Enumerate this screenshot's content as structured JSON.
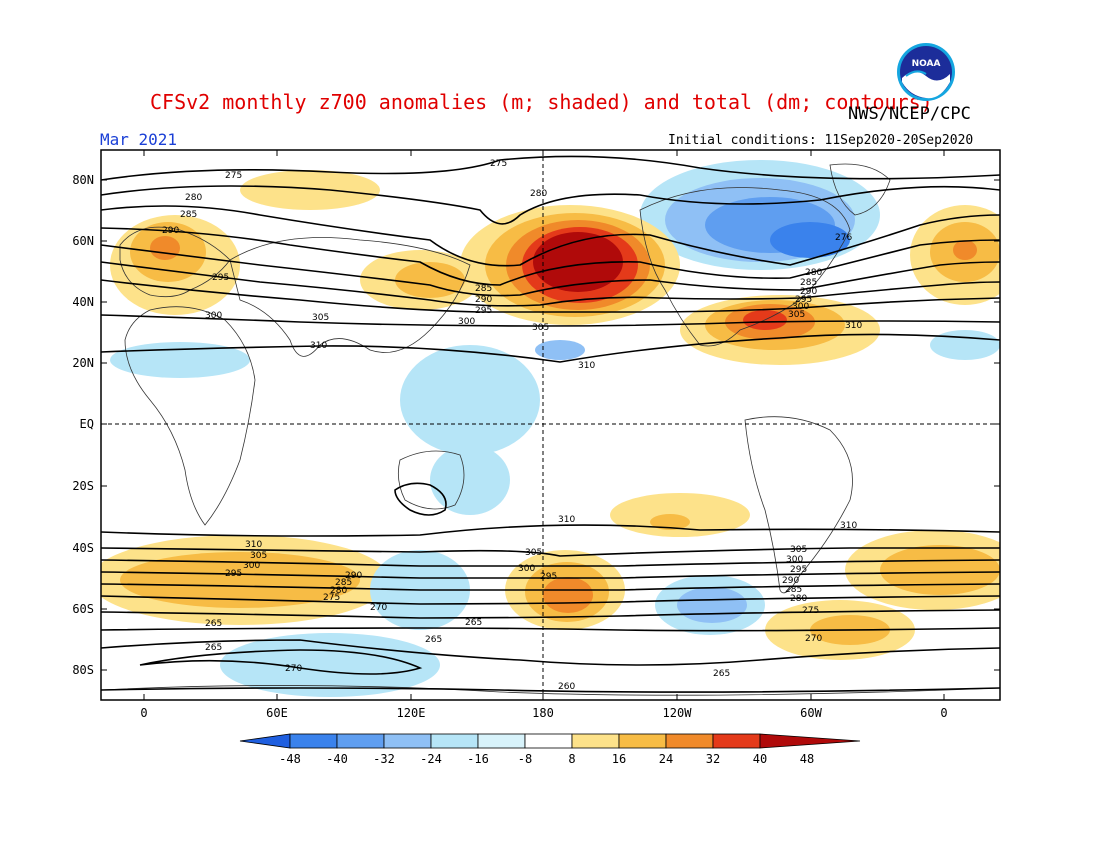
{
  "header": {
    "title": "CFSv2 monthly z700 anomalies (m; shaded) and total (dm; contours)",
    "agency": "NWS/NCEP/CPC",
    "month": "Mar 2021",
    "initial_conditions": "Initial conditions: 11Sep2020-20Sep2020",
    "logo_text": "NOAA"
  },
  "map": {
    "lat_labels": [
      "80N",
      "60N",
      "40N",
      "20N",
      "EQ",
      "20S",
      "40S",
      "60S",
      "80S"
    ],
    "lon_labels": [
      "0",
      "60E",
      "120E",
      "180",
      "120W",
      "60W",
      "0"
    ],
    "contour_labels": [
      "275",
      "280",
      "285",
      "290",
      "295",
      "300",
      "305",
      "310",
      "305",
      "300",
      "295",
      "290",
      "285",
      "280",
      "275",
      "270",
      "265",
      "260",
      "276",
      "270",
      "265"
    ],
    "colors": {
      "neg48": "#1f5fe0",
      "neg40": "#3a82ec",
      "neg32": "#5f9ef0",
      "neg24": "#8fc0f5",
      "neg16": "#b6e5f7",
      "pos16": "#fde28a",
      "pos24": "#f7bc45",
      "pos32": "#f08a2a",
      "pos40": "#e43a1a",
      "pos48": "#b00a0a"
    }
  },
  "colorbar": {
    "ticks": [
      "-48",
      "-40",
      "-32",
      "-24",
      "-16",
      "-8",
      "8",
      "16",
      "24",
      "32",
      "40",
      "48"
    ],
    "colors": [
      "#1f5fe0",
      "#3a82ec",
      "#5f9ef0",
      "#8fc0f5",
      "#b6e5f7",
      "#d8f3fb",
      "#ffffff",
      "#fde28a",
      "#f7bc45",
      "#f08a2a",
      "#e43a1a",
      "#b00a0a"
    ]
  }
}
